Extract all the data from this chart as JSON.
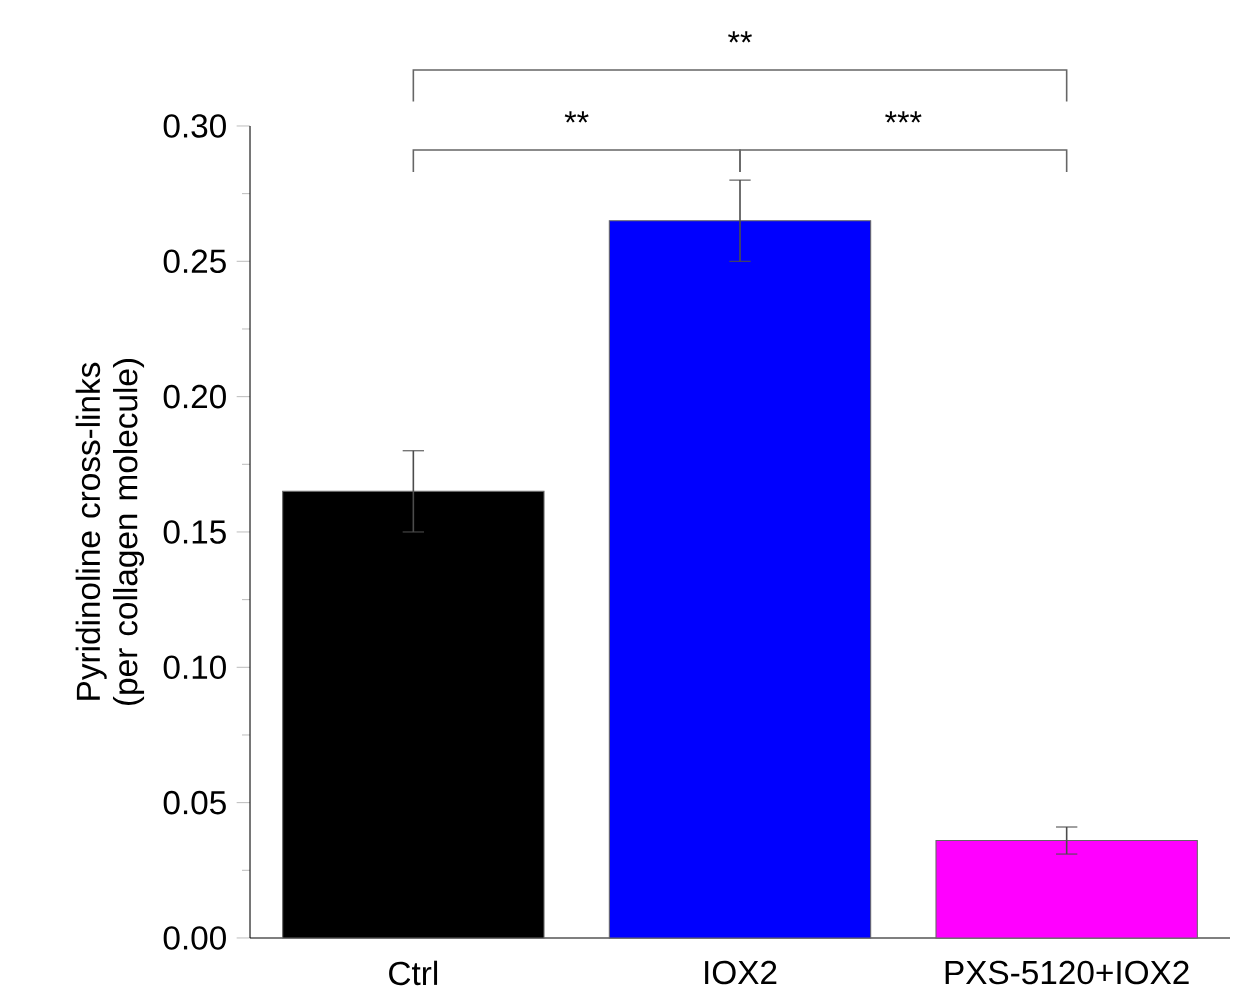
{
  "chart_data": {
    "type": "bar",
    "ylabel": "Pyridinoline cross-links (per collagen molecule)",
    "categories": [
      "Ctrl",
      "IOX2",
      "PXS-5120+IOX2"
    ],
    "values": [
      0.165,
      0.265,
      0.036
    ],
    "errors": [
      0.015,
      0.015,
      0.005
    ],
    "colors": [
      "#000000",
      "#0000ff",
      "#ff00ff"
    ],
    "ylim": [
      0,
      0.3
    ],
    "yticks": [
      {
        "value": 0,
        "label": "0.00"
      },
      {
        "value": 0.05,
        "label": "0.05"
      },
      {
        "value": 0.1,
        "label": "0.10"
      },
      {
        "value": 0.15,
        "label": "0.15"
      },
      {
        "value": 0.2,
        "label": "0.20"
      },
      {
        "value": 0.25,
        "label": "0.25"
      },
      {
        "value": 0.3,
        "label": "0.30"
      }
    ],
    "annotations": [
      "**",
      "**",
      "***"
    ]
  }
}
